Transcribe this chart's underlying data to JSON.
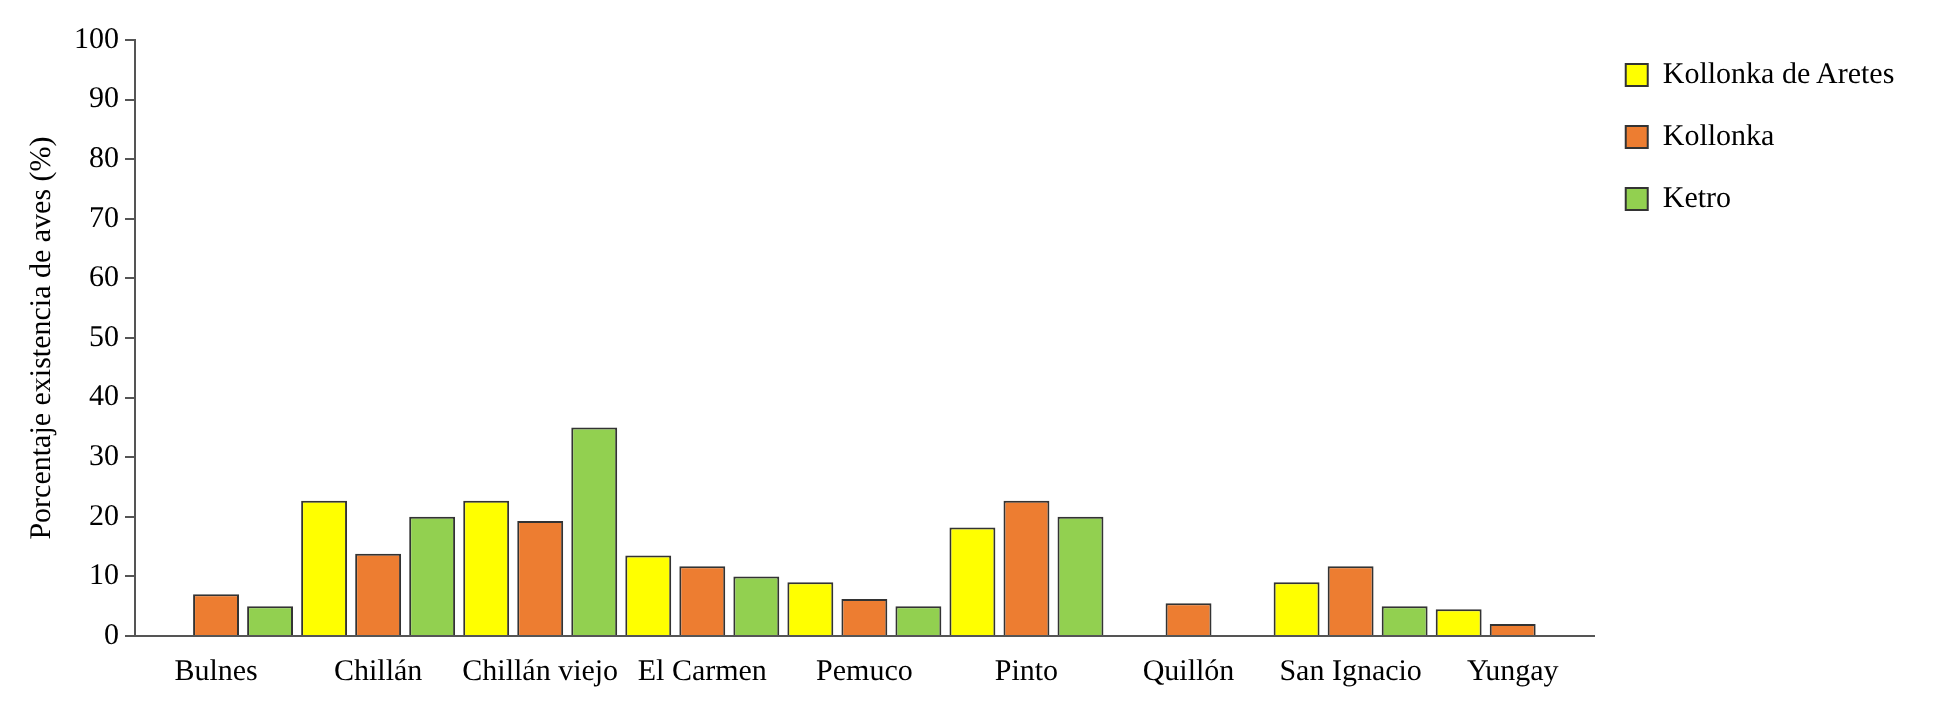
{
  "chart_data": {
    "type": "bar",
    "ylabel": "Porcentaje existencia de aves (%)",
    "categories": [
      "Bulnes",
      "Chillán",
      "Chillán viejo",
      "El Carmen",
      "Pemuco",
      "Pinto",
      "Quillón",
      "San Ignacio",
      "Yungay"
    ],
    "series": [
      {
        "name": "Kollonka de Aretes",
        "color": "#ffff00",
        "values": [
          null,
          22.7,
          22.7,
          13.5,
          9,
          18.2,
          null,
          9,
          4.5
        ]
      },
      {
        "name": "Kollonka",
        "color": "#ed7d31",
        "values": [
          7,
          13.8,
          19.3,
          11.7,
          6.2,
          22.7,
          5.5,
          11.7,
          2
        ]
      },
      {
        "name": "Ketro",
        "color": "#92d050",
        "values": [
          5,
          20,
          35,
          10,
          5,
          20,
          null,
          5,
          null
        ]
      }
    ],
    "ylim": [
      0,
      100
    ],
    "yticks": [
      0,
      10,
      20,
      30,
      40,
      50,
      60,
      70,
      80,
      90,
      100
    ],
    "grid": false,
    "legend": "top right"
  }
}
